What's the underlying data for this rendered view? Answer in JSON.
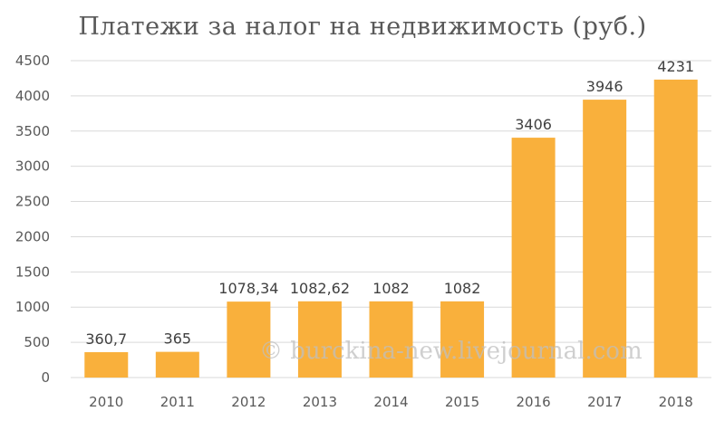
{
  "chart_data": {
    "type": "bar",
    "title": "Платежи за налог на недвижимость (руб.)",
    "categories": [
      "2010",
      "2011",
      "2012",
      "2013",
      "2014",
      "2015",
      "2016",
      "2017",
      "2018"
    ],
    "values": [
      360.7,
      365,
      1078.34,
      1082.62,
      1082,
      1082,
      3406,
      3946,
      4231
    ],
    "data_labels": [
      "360,7",
      "365",
      "1078,34",
      "1082,62",
      "1082",
      "1082",
      "3406",
      "3946",
      "4231"
    ],
    "xlabel": "",
    "ylabel": "",
    "ylim": [
      0,
      4500
    ],
    "yticks": [
      0,
      500,
      1000,
      1500,
      2000,
      2500,
      3000,
      3500,
      4000,
      4500
    ],
    "grid": true,
    "bar_color": "#F9B03C"
  },
  "watermark": "© burckina-new.livejournal.com"
}
